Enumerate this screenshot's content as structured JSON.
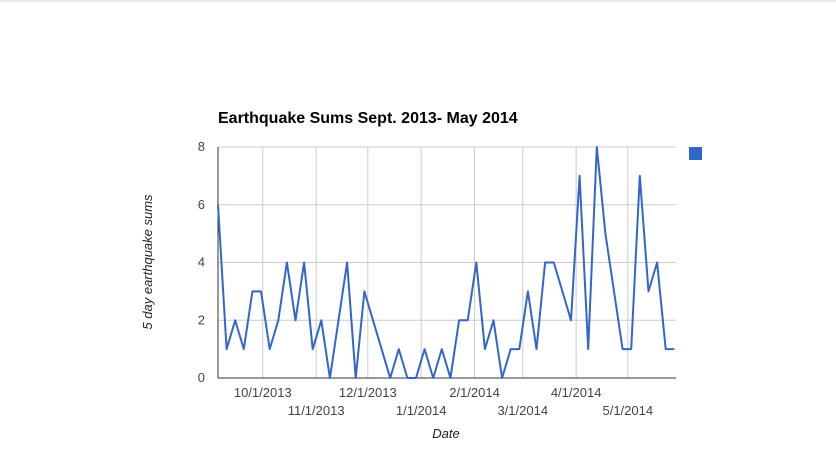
{
  "chart_data": {
    "type": "line",
    "title": "Earthquake Sums Sept. 2013- May 2014",
    "xlabel": "Date",
    "ylabel": "5 day earthquake sums",
    "ylim": [
      0,
      8
    ],
    "y_ticks": [
      "0",
      "2",
      "4",
      "6",
      "8"
    ],
    "xlim": [
      "2013-09-05",
      "2014-05-29"
    ],
    "x_tick_dates": [
      "2013-10-01",
      "2013-11-01",
      "2013-12-01",
      "2014-01-01",
      "2014-02-01",
      "2014-03-01",
      "2014-04-01",
      "2014-05-01"
    ],
    "x_tick_labels": [
      "10/1/2013",
      "11/1/2013",
      "12/1/2013",
      "1/1/2014",
      "2/1/2014",
      "3/1/2014",
      "4/1/2014",
      "5/1/2014"
    ],
    "grid": true,
    "legend": "right",
    "color": "#3366cc",
    "series": [
      {
        "x": [
          "2013-09-05",
          "2013-09-10",
          "2013-09-15",
          "2013-09-20",
          "2013-09-25",
          "2013-09-30",
          "2013-10-05",
          "2013-10-10",
          "2013-10-15",
          "2013-10-20",
          "2013-10-25",
          "2013-10-30",
          "2013-11-04",
          "2013-11-09",
          "2013-11-14",
          "2013-11-19",
          "2013-11-24",
          "2013-11-29",
          "2013-12-04",
          "2013-12-09",
          "2013-12-14",
          "2013-12-19",
          "2013-12-24",
          "2013-12-29",
          "2014-01-03",
          "2014-01-08",
          "2014-01-13",
          "2014-01-18",
          "2014-01-23",
          "2014-01-28",
          "2014-02-02",
          "2014-02-07",
          "2014-02-12",
          "2014-02-17",
          "2014-02-22",
          "2014-02-27",
          "2014-03-04",
          "2014-03-09",
          "2014-03-14",
          "2014-03-19",
          "2014-03-24",
          "2014-03-29",
          "2014-04-03",
          "2014-04-08",
          "2014-04-13",
          "2014-04-18",
          "2014-04-23",
          "2014-04-28",
          "2014-05-03",
          "2014-05-08",
          "2014-05-13",
          "2014-05-18",
          "2014-05-23",
          "2014-05-28"
        ],
        "values": [
          6,
          1,
          2,
          1,
          3,
          3,
          1,
          2,
          4,
          2,
          4,
          1,
          2,
          0,
          2,
          4,
          0,
          3,
          2,
          1,
          0,
          1,
          0,
          0,
          1,
          0,
          1,
          0,
          2,
          2,
          4,
          1,
          2,
          0,
          1,
          1,
          3,
          1,
          4,
          4,
          3,
          2,
          7,
          1,
          8,
          5,
          3,
          1,
          1,
          7,
          3,
          4,
          1,
          1
        ]
      }
    ]
  }
}
